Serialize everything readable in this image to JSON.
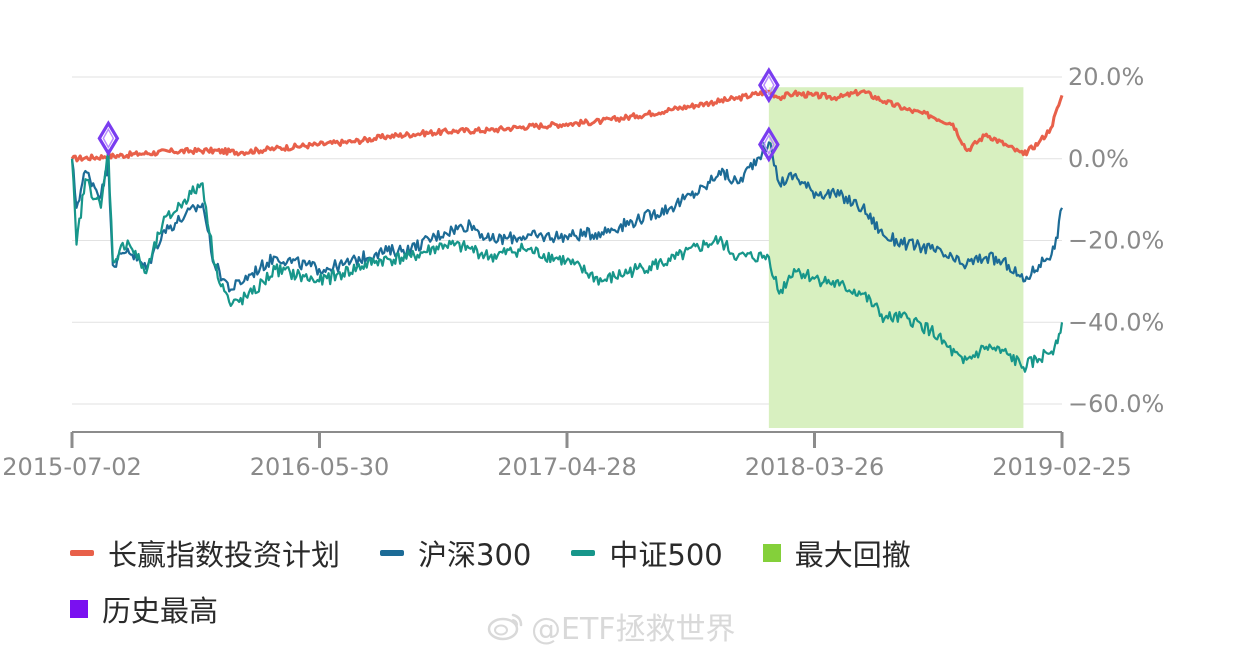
{
  "chart_data": {
    "type": "line",
    "x_ticks": [
      "2015-07-02",
      "2016-05-30",
      "2017-04-28",
      "2018-03-26",
      "2019-02-25"
    ],
    "y_ticks": [
      "20.0%",
      "0.0%",
      "−20.0%",
      "−40.0%",
      "−60.0%"
    ],
    "y_tick_values": [
      20,
      0,
      -20,
      -40,
      -60
    ],
    "ylim": [
      -66,
      26
    ],
    "x_range": [
      "2015-07-02",
      "2019-02-25"
    ],
    "series": [
      {
        "name": "长赢指数投资计划",
        "color": "#e8604a",
        "points": [
          [
            "2015-07-02",
            0
          ],
          [
            "2015-08-15",
            0.5
          ],
          [
            "2015-10-01",
            1.2
          ],
          [
            "2015-11-15",
            1.8
          ],
          [
            "2016-01-01",
            2.0
          ],
          [
            "2016-02-15",
            1.6
          ],
          [
            "2016-04-01",
            2.5
          ],
          [
            "2016-05-30",
            3.5
          ],
          [
            "2016-07-15",
            4.2
          ],
          [
            "2016-09-01",
            5.5
          ],
          [
            "2016-10-15",
            6.2
          ],
          [
            "2016-12-01",
            6.8
          ],
          [
            "2017-01-15",
            7.0
          ],
          [
            "2017-03-01",
            7.8
          ],
          [
            "2017-04-28",
            8.5
          ],
          [
            "2017-06-15",
            9.2
          ],
          [
            "2017-08-01",
            10.5
          ],
          [
            "2017-09-15",
            12.0
          ],
          [
            "2017-11-01",
            13.5
          ],
          [
            "2017-12-15",
            14.8
          ],
          [
            "2018-01-26",
            16.5
          ],
          [
            "2018-02-09",
            15.0
          ],
          [
            "2018-03-01",
            16.0
          ],
          [
            "2018-03-26",
            15.5
          ],
          [
            "2018-05-01",
            15.0
          ],
          [
            "2018-06-01",
            16.5
          ],
          [
            "2018-07-01",
            14.0
          ],
          [
            "2018-08-01",
            12.0
          ],
          [
            "2018-09-01",
            10.5
          ],
          [
            "2018-10-01",
            8.5
          ],
          [
            "2018-10-20",
            2.0
          ],
          [
            "2018-11-15",
            6.0
          ],
          [
            "2018-12-15",
            3.0
          ],
          [
            "2019-01-04",
            1.0
          ],
          [
            "2019-01-25",
            4.0
          ],
          [
            "2019-02-10",
            7.5
          ],
          [
            "2019-02-25",
            15.5
          ]
        ]
      },
      {
        "name": "沪深300",
        "color": "#1c6b96",
        "points": [
          [
            "2015-07-02",
            0
          ],
          [
            "2015-07-08",
            -12
          ],
          [
            "2015-07-20",
            -3
          ],
          [
            "2015-08-10",
            -9
          ],
          [
            "2015-08-20",
            -1
          ],
          [
            "2015-08-26",
            -26
          ],
          [
            "2015-09-15",
            -22
          ],
          [
            "2015-10-10",
            -27
          ],
          [
            "2015-11-01",
            -18
          ],
          [
            "2015-12-01",
            -14
          ],
          [
            "2015-12-25",
            -11
          ],
          [
            "2016-01-10",
            -26
          ],
          [
            "2016-02-01",
            -32
          ],
          [
            "2016-03-01",
            -28
          ],
          [
            "2016-04-01",
            -24
          ],
          [
            "2016-05-30",
            -27
          ],
          [
            "2016-07-01",
            -26
          ],
          [
            "2016-08-15",
            -23
          ],
          [
            "2016-10-01",
            -22
          ],
          [
            "2016-11-15",
            -18
          ],
          [
            "2016-12-20",
            -16
          ],
          [
            "2017-01-15",
            -20
          ],
          [
            "2017-03-01",
            -19
          ],
          [
            "2017-04-28",
            -19
          ],
          [
            "2017-06-15",
            -18
          ],
          [
            "2017-08-01",
            -15
          ],
          [
            "2017-09-15",
            -12
          ],
          [
            "2017-11-01",
            -7
          ],
          [
            "2017-11-20",
            -3
          ],
          [
            "2017-12-15",
            -6
          ],
          [
            "2018-01-26",
            4
          ],
          [
            "2018-02-09",
            -6
          ],
          [
            "2018-03-01",
            -4
          ],
          [
            "2018-03-26",
            -8
          ],
          [
            "2018-05-01",
            -9
          ],
          [
            "2018-06-01",
            -12
          ],
          [
            "2018-07-01",
            -19
          ],
          [
            "2018-08-01",
            -21
          ],
          [
            "2018-09-01",
            -22
          ],
          [
            "2018-10-15",
            -26
          ],
          [
            "2018-11-15",
            -24
          ],
          [
            "2018-12-15",
            -26
          ],
          [
            "2019-01-04",
            -30
          ],
          [
            "2019-01-25",
            -26
          ],
          [
            "2019-02-15",
            -22
          ],
          [
            "2019-02-25",
            -12
          ]
        ]
      },
      {
        "name": "中证500",
        "color": "#17968a",
        "points": [
          [
            "2015-07-02",
            0
          ],
          [
            "2015-07-08",
            -21
          ],
          [
            "2015-07-20",
            -5
          ],
          [
            "2015-08-10",
            -12
          ],
          [
            "2015-08-20",
            2
          ],
          [
            "2015-08-26",
            -25
          ],
          [
            "2015-09-15",
            -20
          ],
          [
            "2015-10-10",
            -28
          ],
          [
            "2015-11-01",
            -16
          ],
          [
            "2015-12-01",
            -10
          ],
          [
            "2015-12-25",
            -6
          ],
          [
            "2016-01-10",
            -26
          ],
          [
            "2016-02-01",
            -36
          ],
          [
            "2016-03-01",
            -33
          ],
          [
            "2016-04-01",
            -27
          ],
          [
            "2016-05-30",
            -30
          ],
          [
            "2016-07-01",
            -28
          ],
          [
            "2016-08-15",
            -25
          ],
          [
            "2016-10-01",
            -24
          ],
          [
            "2016-11-15",
            -21
          ],
          [
            "2016-12-20",
            -22
          ],
          [
            "2017-01-15",
            -24
          ],
          [
            "2017-03-01",
            -22
          ],
          [
            "2017-04-28",
            -25
          ],
          [
            "2017-06-15",
            -30
          ],
          [
            "2017-08-01",
            -27
          ],
          [
            "2017-09-15",
            -25
          ],
          [
            "2017-11-01",
            -21
          ],
          [
            "2017-11-20",
            -20
          ],
          [
            "2017-12-15",
            -24
          ],
          [
            "2018-01-26",
            -24
          ],
          [
            "2018-02-09",
            -33
          ],
          [
            "2018-03-01",
            -27
          ],
          [
            "2018-03-26",
            -29
          ],
          [
            "2018-05-01",
            -31
          ],
          [
            "2018-06-01",
            -33
          ],
          [
            "2018-07-01",
            -39
          ],
          [
            "2018-08-01",
            -39
          ],
          [
            "2018-09-01",
            -42
          ],
          [
            "2018-10-15",
            -50
          ],
          [
            "2018-11-15",
            -46
          ],
          [
            "2018-12-15",
            -48
          ],
          [
            "2019-01-04",
            -51
          ],
          [
            "2019-01-25",
            -49
          ],
          [
            "2019-02-15",
            -46
          ],
          [
            "2019-02-25",
            -40
          ]
        ]
      }
    ],
    "drawdown_region": {
      "name": "最大回撤",
      "start": "2018-01-26",
      "end": "2019-01-04",
      "color": "#d8f0c0"
    },
    "peaks": {
      "name": "历史最高",
      "color": "#7a3cf0",
      "points": [
        [
          "2015-08-20",
          5
        ],
        [
          "2018-01-26",
          18
        ],
        [
          "2018-01-26",
          3.5
        ]
      ]
    },
    "legend": [
      {
        "label": "长赢指数投资计划",
        "kind": "line",
        "color": "#e8604a"
      },
      {
        "label": "沪深300",
        "kind": "line",
        "color": "#1c6b96"
      },
      {
        "label": "中证500",
        "kind": "line",
        "color": "#17968a"
      },
      {
        "label": "最大回撤",
        "kind": "square",
        "color": "#84d03a"
      },
      {
        "label": "历史最高",
        "kind": "square",
        "color": "#7a10f0"
      }
    ],
    "legend_position": "bottom",
    "grid": true
  },
  "watermark": {
    "text": "@ETF拯救世界",
    "icon": "weibo-icon"
  }
}
